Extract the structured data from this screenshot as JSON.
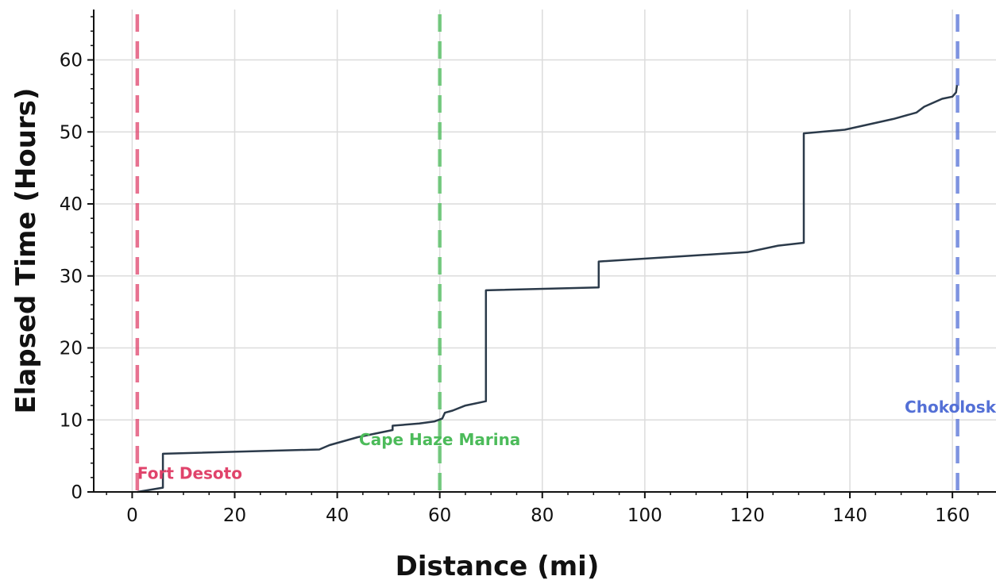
{
  "chart_data": {
    "type": "line",
    "title": "",
    "xlabel": "Distance (mi)",
    "ylabel": "Elapsed Time (Hours)",
    "xlim": [
      -7.5,
      168.5
    ],
    "ylim": [
      0,
      67
    ],
    "x_ticks": [
      0,
      20,
      40,
      60,
      80,
      100,
      120,
      140,
      160
    ],
    "y_ticks": [
      0,
      10,
      20,
      30,
      40,
      50,
      60
    ],
    "grid": true,
    "legend": "none",
    "series": [
      {
        "color": "#2b3a4a",
        "points": [
          [
            1.0,
            0.0
          ],
          [
            6.0,
            0.6
          ],
          [
            6.0,
            5.3
          ],
          [
            36.5,
            5.9
          ],
          [
            38.5,
            6.5
          ],
          [
            44.0,
            7.6
          ],
          [
            50.8,
            8.6
          ],
          [
            50.8,
            9.2
          ],
          [
            56.0,
            9.5
          ],
          [
            59.0,
            9.8
          ],
          [
            60.5,
            10.2
          ],
          [
            61.0,
            11.0
          ],
          [
            62.5,
            11.3
          ],
          [
            65.0,
            12.0
          ],
          [
            69.0,
            12.6
          ],
          [
            69.0,
            28.0
          ],
          [
            91.0,
            28.4
          ],
          [
            91.0,
            32.0
          ],
          [
            120.0,
            33.3
          ],
          [
            126.0,
            34.2
          ],
          [
            131.0,
            34.6
          ],
          [
            131.0,
            49.8
          ],
          [
            139.0,
            50.3
          ],
          [
            148.5,
            51.8
          ],
          [
            153.0,
            52.7
          ],
          [
            154.5,
            53.5
          ],
          [
            158.0,
            54.6
          ],
          [
            160.0,
            54.9
          ],
          [
            160.7,
            55.5
          ],
          [
            160.9,
            56.5
          ]
        ]
      }
    ],
    "markers": [
      {
        "label": "Fort Desoto",
        "x": 1.0,
        "label_y": 2.6,
        "color": "#e0436b"
      },
      {
        "label": "Cape Haze Marina",
        "x": 60.0,
        "label_y": 7.3,
        "color": "#4cbb5a"
      },
      {
        "label": "Chokolosk",
        "x": 161.0,
        "label_y": 11.8,
        "color": "#5470d6"
      }
    ]
  }
}
